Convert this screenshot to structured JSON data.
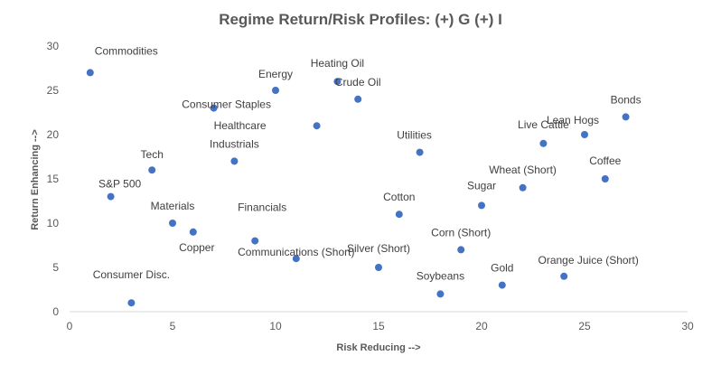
{
  "chart_data": {
    "type": "scatter",
    "title": "Regime Return/Risk Profiles: (+) G (+) I",
    "xlabel": "Risk Reducing -->",
    "ylabel": "Return Enhancing -->",
    "xlim": [
      0,
      30
    ],
    "ylim": [
      0,
      30
    ],
    "xticks": [
      0,
      5,
      10,
      15,
      20,
      25,
      30
    ],
    "yticks": [
      0,
      5,
      10,
      15,
      20,
      25,
      30
    ],
    "grid": false,
    "marker_color": "#4472c4",
    "points": [
      {
        "label": "Commodities",
        "x": 1,
        "y": 27
      },
      {
        "label": "S&P 500",
        "x": 2,
        "y": 13
      },
      {
        "label": "Consumer Disc.",
        "x": 3,
        "y": 1
      },
      {
        "label": "Tech",
        "x": 4,
        "y": 16
      },
      {
        "label": "Materials",
        "x": 5,
        "y": 10
      },
      {
        "label": "Copper",
        "x": 6,
        "y": 9
      },
      {
        "label": "Consumer Staples",
        "x": 7,
        "y": 23
      },
      {
        "label": "Industrials",
        "x": 8,
        "y": 17
      },
      {
        "label": "Financials",
        "x": 9,
        "y": 8
      },
      {
        "label": "Energy",
        "x": 10,
        "y": 25
      },
      {
        "label": "Communications (Short)",
        "x": 11,
        "y": 6
      },
      {
        "label": "Healthcare",
        "x": 12,
        "y": 21
      },
      {
        "label": "Heating Oil",
        "x": 13,
        "y": 26
      },
      {
        "label": "Crude Oil",
        "x": 14,
        "y": 24
      },
      {
        "label": "Silver (Short)",
        "x": 15,
        "y": 5
      },
      {
        "label": "Cotton",
        "x": 16,
        "y": 11
      },
      {
        "label": "Utilities",
        "x": 17,
        "y": 18
      },
      {
        "label": "Soybeans",
        "x": 18,
        "y": 2
      },
      {
        "label": "Corn (Short)",
        "x": 19,
        "y": 7
      },
      {
        "label": "Sugar",
        "x": 20,
        "y": 12
      },
      {
        "label": "Gold",
        "x": 21,
        "y": 3
      },
      {
        "label": "Wheat (Short)",
        "x": 22,
        "y": 14
      },
      {
        "label": "Live Cattle",
        "x": 23,
        "y": 19
      },
      {
        "label": "Orange Juice (Short)",
        "x": 24,
        "y": 4
      },
      {
        "label": "Lean Hogs",
        "x": 25,
        "y": 20
      },
      {
        "label": "Coffee",
        "x": 26,
        "y": 15
      },
      {
        "label": "Bonds",
        "x": 27,
        "y": 22
      }
    ]
  }
}
